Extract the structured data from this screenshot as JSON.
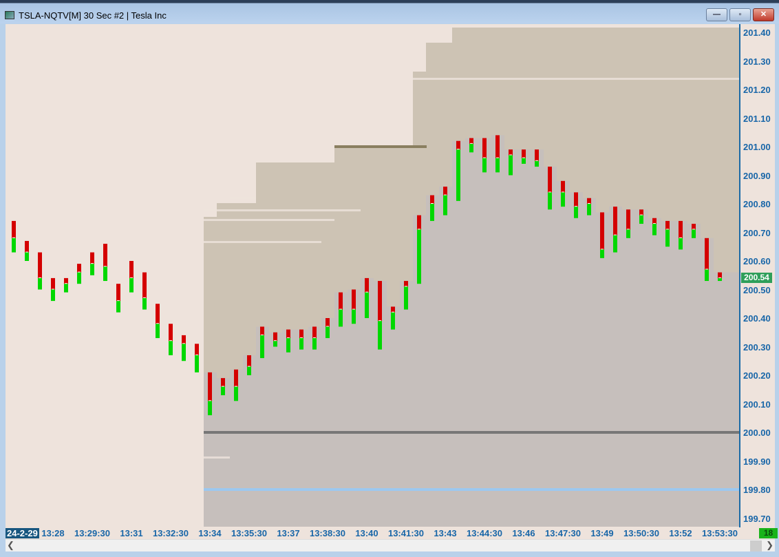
{
  "window": {
    "title": "TSLA-NQTV[M]  30 Sec  #2 | Tesla Inc",
    "minimize": "—",
    "maximize": "▫",
    "close": "✕"
  },
  "colors": {
    "background": "#eee3dc",
    "profile": "#cdc3b4",
    "below": "#c6bfbc",
    "sell": "#d40000",
    "buy": "#00d800",
    "axis_text": "#1866a8"
  },
  "price_axis": {
    "labels": [
      "201.40",
      "201.30",
      "201.20",
      "201.10",
      "201.00",
      "200.90",
      "200.80",
      "200.70",
      "200.60",
      "200.50",
      "200.40",
      "200.30",
      "200.20",
      "200.10",
      "200.00",
      "199.90",
      "199.80",
      "199.70"
    ],
    "current_price": "200.54"
  },
  "time_axis": {
    "date": "24-2-29",
    "labels": [
      "13:28",
      "13:29:30",
      "13:31",
      "13:32:30",
      "13:34",
      "13:35:30",
      "13:37",
      "13:38:30",
      "13:40",
      "13:41:30",
      "13:43",
      "13:44:30",
      "13:46",
      "13:47:30",
      "13:49",
      "13:50:30",
      "13:52",
      "13:53:30"
    ],
    "count": "18"
  },
  "chart_data": {
    "type": "candlestick-volume-split",
    "interval": "30 Sec",
    "start_time": "13:26:30",
    "bars": [
      [
        200.74,
        200.63,
        200.68
      ],
      [
        200.67,
        200.6,
        200.63
      ],
      [
        200.63,
        200.5,
        200.54
      ],
      [
        200.54,
        200.46,
        200.5
      ],
      [
        200.54,
        200.49,
        200.52
      ],
      [
        200.59,
        200.52,
        200.56
      ],
      [
        200.63,
        200.55,
        200.59
      ],
      [
        200.66,
        200.53,
        200.58
      ],
      [
        200.52,
        200.42,
        200.46
      ],
      [
        200.6,
        200.49,
        200.54
      ],
      [
        200.56,
        200.43,
        200.47
      ],
      [
        200.45,
        200.33,
        200.38
      ],
      [
        200.38,
        200.27,
        200.32
      ],
      [
        200.34,
        200.25,
        200.31
      ],
      [
        200.31,
        200.21,
        200.27
      ],
      [
        200.21,
        200.06,
        200.11
      ],
      [
        200.19,
        200.13,
        200.16
      ],
      [
        200.22,
        200.11,
        200.16
      ],
      [
        200.27,
        200.2,
        200.23
      ],
      [
        200.37,
        200.26,
        200.34
      ],
      [
        200.35,
        200.3,
        200.32
      ],
      [
        200.36,
        200.28,
        200.33
      ],
      [
        200.36,
        200.29,
        200.33
      ],
      [
        200.37,
        200.29,
        200.33
      ],
      [
        200.4,
        200.33,
        200.37
      ],
      [
        200.49,
        200.37,
        200.43
      ],
      [
        200.5,
        200.38,
        200.43
      ],
      [
        200.54,
        200.4,
        200.49
      ],
      [
        200.53,
        200.29,
        200.39
      ],
      [
        200.44,
        200.36,
        200.42
      ],
      [
        200.53,
        200.43,
        200.51
      ],
      [
        200.76,
        200.52,
        200.71
      ],
      [
        200.83,
        200.74,
        200.8
      ],
      [
        200.86,
        200.76,
        200.83
      ],
      [
        201.02,
        200.81,
        200.99
      ],
      [
        201.03,
        200.98,
        201.01
      ],
      [
        201.03,
        200.91,
        200.96
      ],
      [
        201.04,
        200.91,
        200.96
      ],
      [
        200.99,
        200.9,
        200.97
      ],
      [
        200.99,
        200.94,
        200.96
      ],
      [
        200.99,
        200.93,
        200.95
      ],
      [
        200.93,
        200.78,
        200.84
      ],
      [
        200.88,
        200.79,
        200.84
      ],
      [
        200.84,
        200.75,
        200.79
      ],
      [
        200.82,
        200.76,
        200.8
      ],
      [
        200.77,
        200.61,
        200.64
      ],
      [
        200.79,
        200.63,
        200.69
      ],
      [
        200.78,
        200.68,
        200.71
      ],
      [
        200.78,
        200.73,
        200.76
      ],
      [
        200.75,
        200.69,
        200.73
      ],
      [
        200.74,
        200.65,
        200.71
      ],
      [
        200.74,
        200.64,
        200.68
      ],
      [
        200.73,
        200.68,
        200.71
      ],
      [
        200.68,
        200.53,
        200.57
      ],
      [
        200.56,
        200.53,
        200.54
      ]
    ],
    "bar_fields": [
      "high",
      "low",
      "split"
    ],
    "levels": [
      {
        "price": 200.0,
        "color": "#777777"
      },
      {
        "price": 199.8,
        "color": "#9cc8f0"
      },
      {
        "price": 201.0,
        "color": "#8a7f60"
      }
    ],
    "ylim": [
      199.67,
      201.43
    ]
  }
}
